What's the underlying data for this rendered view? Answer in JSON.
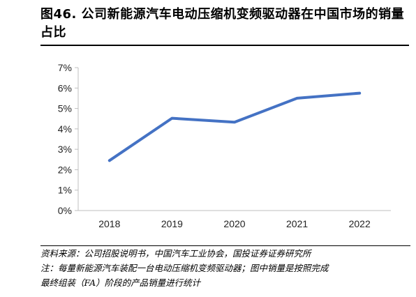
{
  "figure": {
    "title": "图46. 公司新能源汽车电动压缩机变频驱动器在中国市场的销量占比",
    "source": "资料来源：公司招股说明书，中国汽车工业协会，国投证券证券研究所",
    "note_line1": "注：每量新能源汽车装配一台电动压缩机变频驱动器；图中销量是按照完成",
    "note_line2": "最终组装（FA）阶段的产品销量进行统计"
  },
  "chart_data": {
    "type": "line",
    "title": "",
    "xlabel": "",
    "ylabel": "",
    "categories": [
      "2018",
      "2019",
      "2020",
      "2021",
      "2022"
    ],
    "series": [
      {
        "values": [
          2.45,
          4.52,
          4.33,
          5.5,
          5.75
        ]
      }
    ],
    "ylim": [
      0,
      7
    ],
    "yticks": [
      "0%",
      "1%",
      "2%",
      "3%",
      "4%",
      "5%",
      "6%",
      "7%"
    ],
    "unit": "%",
    "grid": false,
    "line_color": "#4472C4",
    "axis_color": "#BFBFBF"
  }
}
